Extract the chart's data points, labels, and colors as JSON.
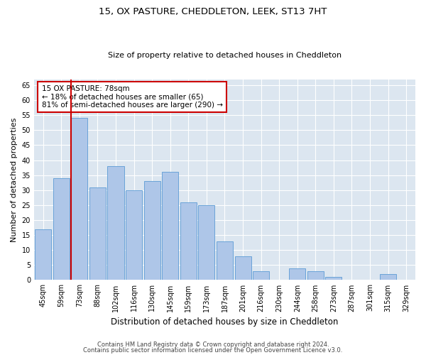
{
  "title": "15, OX PASTURE, CHEDDLETON, LEEK, ST13 7HT",
  "subtitle": "Size of property relative to detached houses in Cheddleton",
  "xlabel": "Distribution of detached houses by size in Cheddleton",
  "ylabel": "Number of detached properties",
  "categories": [
    "45sqm",
    "59sqm",
    "73sqm",
    "88sqm",
    "102sqm",
    "116sqm",
    "130sqm",
    "145sqm",
    "159sqm",
    "173sqm",
    "187sqm",
    "201sqm",
    "216sqm",
    "230sqm",
    "244sqm",
    "258sqm",
    "273sqm",
    "287sqm",
    "301sqm",
    "315sqm",
    "329sqm"
  ],
  "values": [
    17,
    34,
    54,
    31,
    38,
    30,
    33,
    36,
    26,
    25,
    13,
    8,
    3,
    0,
    4,
    3,
    1,
    0,
    0,
    2,
    0
  ],
  "bar_color": "#aec6e8",
  "bar_edge_color": "#5b9bd5",
  "highlight_line_index": 2,
  "highlight_line_color": "#cc0000",
  "annotation_text": "15 OX PASTURE: 78sqm\n← 18% of detached houses are smaller (65)\n81% of semi-detached houses are larger (290) →",
  "annotation_box_facecolor": "#ffffff",
  "annotation_box_edgecolor": "#cc0000",
  "ylim": [
    0,
    67
  ],
  "yticks": [
    0,
    5,
    10,
    15,
    20,
    25,
    30,
    35,
    40,
    45,
    50,
    55,
    60,
    65
  ],
  "fig_facecolor": "#ffffff",
  "ax_facecolor": "#dce6f0",
  "grid_color": "#ffffff",
  "footer_line1": "Contains HM Land Registry data © Crown copyright and database right 2024.",
  "footer_line2": "Contains public sector information licensed under the Open Government Licence v3.0.",
  "title_fontsize": 9.5,
  "subtitle_fontsize": 8,
  "ylabel_fontsize": 8,
  "xlabel_fontsize": 8.5,
  "tick_fontsize": 7,
  "footer_fontsize": 6,
  "annot_fontsize": 7.5
}
